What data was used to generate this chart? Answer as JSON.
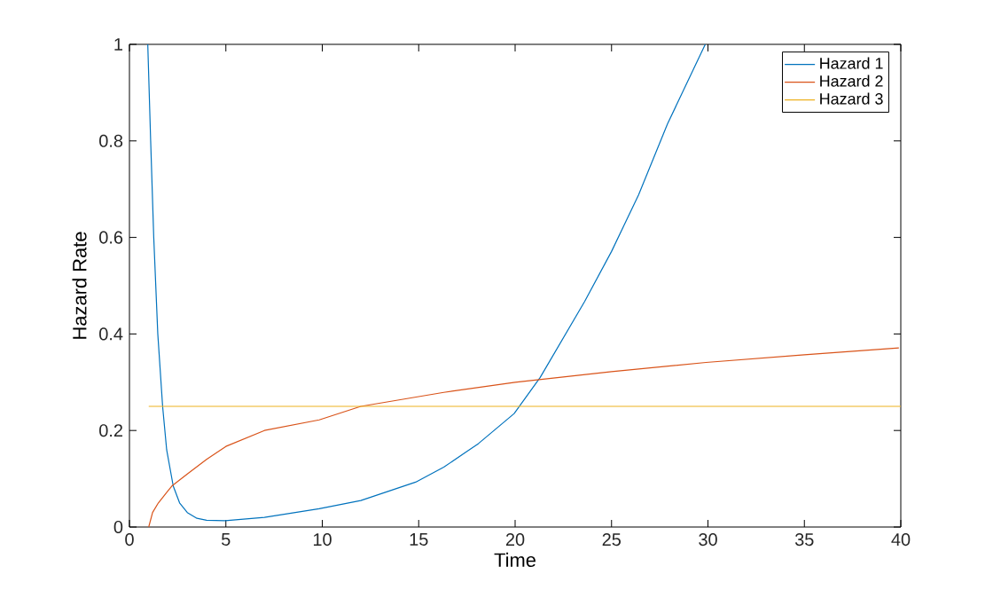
{
  "chart_data": {
    "type": "line",
    "xlabel": "Time",
    "ylabel": "Hazard Rate",
    "xlim": [
      0,
      40
    ],
    "ylim": [
      0,
      1
    ],
    "xticks": [
      0,
      5,
      10,
      15,
      20,
      25,
      30,
      35,
      40
    ],
    "yticks": [
      0,
      0.2,
      0.4,
      0.6,
      0.8,
      1
    ],
    "legend": "top right",
    "grid": false,
    "marker": "none",
    "line_style": "solid",
    "series": [
      {
        "name": "Hazard 1",
        "color": "#0072bd",
        "x": [
          0.95,
          1.1,
          1.26,
          1.47,
          1.72,
          1.93,
          2.27,
          2.6,
          3.0,
          3.5,
          4.0,
          4.94,
          7,
          9.84,
          12,
          14.84,
          16.3,
          18.1,
          19.95,
          21.3,
          23.6,
          25.0,
          26.4,
          27.9,
          29.86
        ],
        "values": [
          1.0,
          0.8,
          0.6,
          0.4,
          0.25,
          0.16,
          0.085,
          0.05,
          0.03,
          0.018,
          0.014,
          0.013,
          0.02,
          0.038,
          0.055,
          0.093,
          0.124,
          0.173,
          0.235,
          0.31,
          0.467,
          0.571,
          0.688,
          0.835,
          1.0
        ]
      },
      {
        "name": "Hazard 2",
        "color": "#d95319",
        "x": [
          1,
          1.2,
          1.5,
          2,
          2.2,
          3,
          4,
          5,
          7,
          9.84,
          12,
          16.3,
          20,
          25,
          29.9,
          35,
          39.9
        ],
        "values": [
          0,
          0.03,
          0.05,
          0.075,
          0.085,
          0.11,
          0.14,
          0.167,
          0.2,
          0.222,
          0.25,
          0.279,
          0.3,
          0.322,
          0.341,
          0.357,
          0.371
        ]
      },
      {
        "name": "Hazard 3",
        "color": "#edb120",
        "x": [
          1,
          40
        ],
        "values": [
          0.25,
          0.25
        ]
      }
    ]
  }
}
